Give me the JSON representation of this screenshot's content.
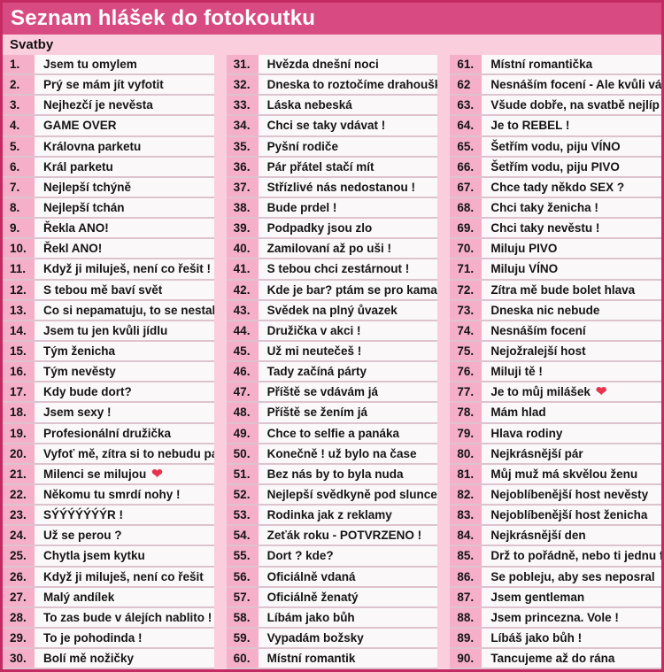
{
  "header": {
    "title": "Seznam hlášek do fotokoutku"
  },
  "section": {
    "title": "Svatby"
  },
  "colors": {
    "header_bg": "#d84b82",
    "page_bg": "#fbcede",
    "number_strip": "#f5afc9",
    "cell_bg": "#fbf8f9",
    "border": "#c22a61",
    "heart": "#e8324e"
  },
  "list": {
    "columns": [
      {
        "items": [
          {
            "num": "1.",
            "text": "Jsem tu omylem"
          },
          {
            "num": "2.",
            "text": "Prý se mám jít vyfotit"
          },
          {
            "num": "3.",
            "text": "Nejhezčí je nevěsta"
          },
          {
            "num": "4.",
            "text": "GAME OVER"
          },
          {
            "num": "5.",
            "text": "Královna parketu"
          },
          {
            "num": "6.",
            "text": "Král parketu"
          },
          {
            "num": "7.",
            "text": "Nejlepší tchýně"
          },
          {
            "num": "8.",
            "text": "Nejlepší tchán"
          },
          {
            "num": "9.",
            "text": "Řekla ANO!"
          },
          {
            "num": "10.",
            "text": "Řekl ANO!"
          },
          {
            "num": "11.",
            "text": "Když ji miluješ, není co řešit !"
          },
          {
            "num": "12.",
            "text": "S tebou mě baví svět"
          },
          {
            "num": "13.",
            "text": "Co si nepamatuju, to se nestalo !"
          },
          {
            "num": "14.",
            "text": "Jsem tu jen kvůli jídlu"
          },
          {
            "num": "15.",
            "text": "Tým ženicha"
          },
          {
            "num": "16.",
            "text": "Tým nevěsty"
          },
          {
            "num": "17.",
            "text": "Kdy bude dort?"
          },
          {
            "num": "18.",
            "text": "Jsem sexy !"
          },
          {
            "num": "19.",
            "text": "Profesionální družička"
          },
          {
            "num": "20.",
            "text": "Vyfoť mě, zítra si to nebudu pamatovat"
          },
          {
            "num": "21.",
            "text": "Milenci se milujou",
            "icon": "heart"
          },
          {
            "num": "22.",
            "text": "Někomu tu smrdí nohy !"
          },
          {
            "num": "23.",
            "text": "SÝÝÝÝÝÝÝR !"
          },
          {
            "num": "24.",
            "text": "Už se perou ?"
          },
          {
            "num": "25.",
            "text": "Chytla jsem kytku"
          },
          {
            "num": "26.",
            "text": "Když ji miluješ, není co řešit"
          },
          {
            "num": "27.",
            "text": "Malý andílek"
          },
          {
            "num": "28.",
            "text": "To zas bude v álejích nablito !"
          },
          {
            "num": "29.",
            "text": "To je pohodinda !"
          },
          {
            "num": "30.",
            "text": "Bolí mě nožičky"
          }
        ]
      },
      {
        "items": [
          {
            "num": "31.",
            "text": "Hvězda dnešní noci"
          },
          {
            "num": "32.",
            "text": "Dneska to roztočíme drahoušku !"
          },
          {
            "num": "33.",
            "text": "Láska nebeská"
          },
          {
            "num": "34.",
            "text": "Chci se taky vdávat !"
          },
          {
            "num": "35.",
            "text": "Pyšní rodiče"
          },
          {
            "num": "36.",
            "text": "Pár přátel stačí mít"
          },
          {
            "num": "37.",
            "text": "Střízlivé nás nedostanou !"
          },
          {
            "num": "38.",
            "text": "Bude prdel !"
          },
          {
            "num": "39.",
            "text": "Podpadky jsou zlo"
          },
          {
            "num": "40.",
            "text": "Zamilovaní až po uši !"
          },
          {
            "num": "41.",
            "text": "S tebou chci zestárnout !"
          },
          {
            "num": "42.",
            "text": "Kde je bar? ptám se pro kamaráda"
          },
          {
            "num": "43.",
            "text": "Svědek na plný ůvazek"
          },
          {
            "num": "44.",
            "text": "Družička v akci !"
          },
          {
            "num": "45.",
            "text": "Už mi neutečeš !"
          },
          {
            "num": "46.",
            "text": "Tady začíná párty"
          },
          {
            "num": "47.",
            "text": "Příště se vdávám já"
          },
          {
            "num": "48.",
            "text": "Příště se žením já"
          },
          {
            "num": "49.",
            "text": "Chce to selfie a panáka"
          },
          {
            "num": "50.",
            "text": "Konečně ! už bylo na čase"
          },
          {
            "num": "51.",
            "text": "Bez nás by to byla nuda"
          },
          {
            "num": "52.",
            "text": "Nejlepší svědkyně pod sluncem"
          },
          {
            "num": "53.",
            "text": "Rodinka jak z reklamy"
          },
          {
            "num": "54.",
            "text": "Zeťák roku - POTVRZENO !"
          },
          {
            "num": "55.",
            "text": "Dort ? kde?"
          },
          {
            "num": "56.",
            "text": "Oficiálně vdaná"
          },
          {
            "num": "57.",
            "text": "Oficiálně ženatý"
          },
          {
            "num": "58.",
            "text": "Líbám jako bůh"
          },
          {
            "num": "59.",
            "text": "Vypadám božsky"
          },
          {
            "num": "60.",
            "text": "Místní romantik"
          }
        ]
      },
      {
        "items": [
          {
            "num": "61.",
            "text": "Místní romantička"
          },
          {
            "num": "62",
            "text": "Nesnáším focení - Ale kvůli vám !"
          },
          {
            "num": "63.",
            "text": "Všude dobře, na svatbě nejlíp"
          },
          {
            "num": "64.",
            "text": "Je to REBEL !"
          },
          {
            "num": "65.",
            "text": "Šetřím vodu, piju VÍNO"
          },
          {
            "num": "66.",
            "text": "Šetřím vodu, piju PIVO"
          },
          {
            "num": "67.",
            "text": "Chce tady někdo SEX ?"
          },
          {
            "num": "68.",
            "text": "Chci taky ženicha !"
          },
          {
            "num": "69.",
            "text": "Chci taky nevěstu !"
          },
          {
            "num": "70.",
            "text": "Miluju PIVO"
          },
          {
            "num": "71.",
            "text": "Miluju VÍNO"
          },
          {
            "num": "72.",
            "text": "Zítra mě bude bolet hlava"
          },
          {
            "num": "73.",
            "text": "Dneska nic nebude"
          },
          {
            "num": "74.",
            "text": "Nesnáším focení"
          },
          {
            "num": "75.",
            "text": "Nejožralejší host"
          },
          {
            "num": "76.",
            "text": "Miluji tě !"
          },
          {
            "num": "77.",
            "text": "Je to můj milášek",
            "icon": "heart"
          },
          {
            "num": "78.",
            "text": "Mám hlad"
          },
          {
            "num": "79.",
            "text": "Hlava rodiny"
          },
          {
            "num": "80.",
            "text": "Nejkrásnější pár"
          },
          {
            "num": "81.",
            "text": "Můj muž má skvělou ženu"
          },
          {
            "num": "82.",
            "text": "Nejoblíbenější host nevěsty"
          },
          {
            "num": "83.",
            "text": "Nejoblíbenější host ženicha"
          },
          {
            "num": "84.",
            "text": "Nejkrásnější den"
          },
          {
            "num": "85.",
            "text": "Drž to pořádně, nebo ti jednu fláknu"
          },
          {
            "num": "86.",
            "text": "Se pobleju, aby ses neposral"
          },
          {
            "num": "87.",
            "text": "Jsem gentleman"
          },
          {
            "num": "88.",
            "text": "Jsem princezna. Vole !"
          },
          {
            "num": "89.",
            "text": "Líbáš jako bůh !"
          },
          {
            "num": "90.",
            "text": "Tancujeme až do rána"
          }
        ]
      }
    ]
  }
}
